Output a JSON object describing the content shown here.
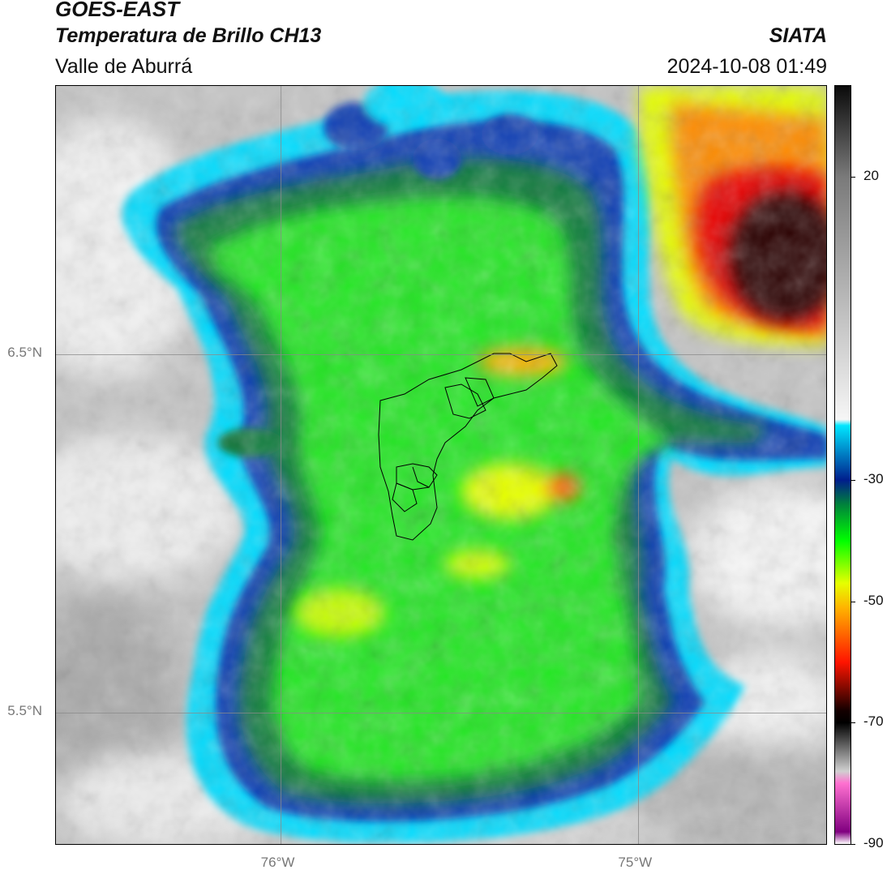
{
  "header": {
    "satellite": "GOES-EAST",
    "product": "Temperatura de Brillo CH13",
    "region": "Valle de Aburrá",
    "organization": "SIATA",
    "timestamp": "2024-10-08 01:49"
  },
  "map": {
    "lat_range": [
      5.13,
      7.25
    ],
    "lon_range": [
      -76.63,
      -74.47
    ],
    "graticule": {
      "lon_labels": [
        "76°W",
        "75°W"
      ],
      "lat_labels": [
        "6.5°N",
        "5.5°N"
      ],
      "lon_values": [
        -76,
        -75
      ],
      "lat_values": [
        6.5,
        5.5
      ]
    },
    "overlay": "municipal boundaries",
    "field": "cloud-top brightness temperature"
  },
  "colorbar": {
    "range": [
      -90,
      35
    ],
    "tick_labels": [
      "20",
      "-30",
      "-50",
      "-70",
      "-90"
    ],
    "tick_values": [
      20,
      -30,
      -50,
      -70,
      -90
    ],
    "stops": [
      {
        "value": 35,
        "color": "#0a0a0a"
      },
      {
        "value": 20,
        "color": "#7a7a7a"
      },
      {
        "value": -20,
        "color": "#f6f6f6"
      },
      {
        "value": -21,
        "color": "#00e6ff"
      },
      {
        "value": -30,
        "color": "#001e8c"
      },
      {
        "value": -34,
        "color": "#00823c"
      },
      {
        "value": -40,
        "color": "#00ff00"
      },
      {
        "value": -47,
        "color": "#e6ff00"
      },
      {
        "value": -51,
        "color": "#ffb400"
      },
      {
        "value": -60,
        "color": "#ff1400"
      },
      {
        "value": -68,
        "color": "#140000"
      },
      {
        "value": -70,
        "color": "#000000"
      },
      {
        "value": -78,
        "color": "#d0d0d0"
      },
      {
        "value": -80,
        "color": "#ff70d0"
      },
      {
        "value": -88,
        "color": "#800080"
      },
      {
        "value": -90,
        "color": "#ffffff"
      }
    ]
  }
}
